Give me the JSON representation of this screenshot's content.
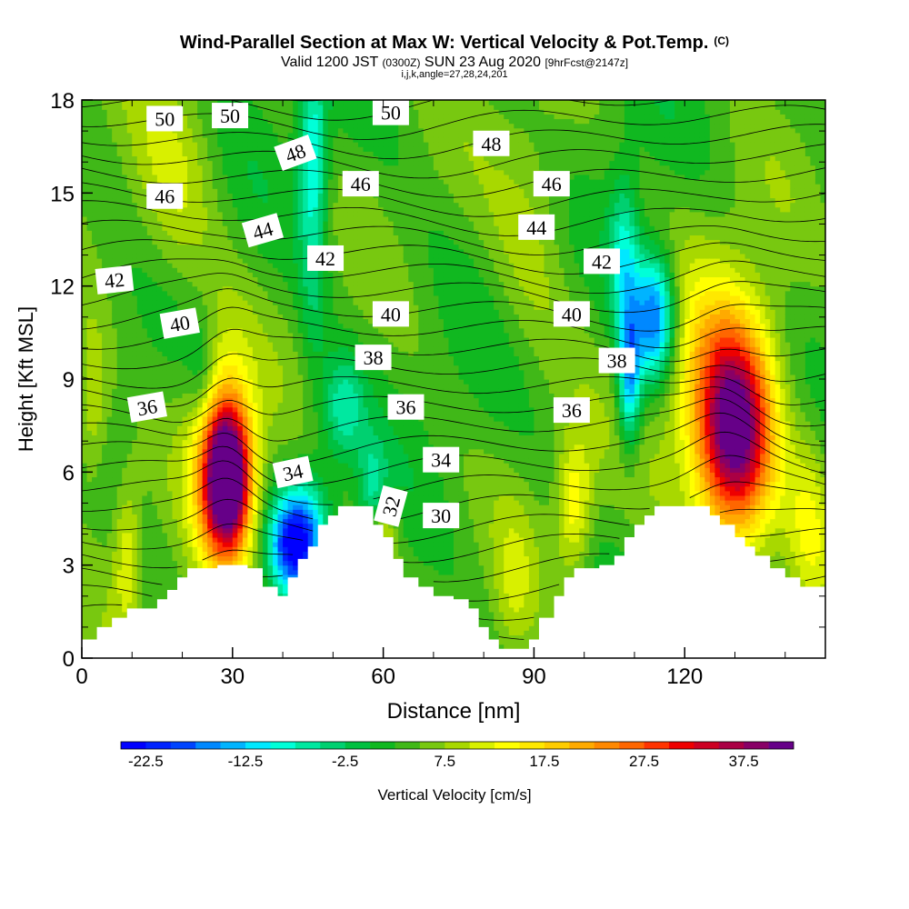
{
  "chart_data": {
    "type": "heatmap",
    "title": "Wind-Parallel Section at Max W: Vertical Velocity & Pot.Temp.",
    "title_suffix": "(C)",
    "subtitle": {
      "main_a": "Valid 1200 JST",
      "small_a": "(0300Z)",
      "main_b": "SUN 23 Aug 2020",
      "small_b": "[9hrFcst@2147z]"
    },
    "index_line": "i,j,k,angle=27,28,24,201",
    "xlabel": "Distance [nm]",
    "ylabel": "Height [Kft MSL]",
    "xlim": [
      0,
      148
    ],
    "ylim": [
      0,
      18
    ],
    "x_ticks": [
      0,
      30,
      60,
      90,
      120
    ],
    "y_ticks": [
      0,
      3,
      6,
      9,
      12,
      15,
      18
    ],
    "colorbar": {
      "label": "Vertical Velocity [cm/s]",
      "min": -25,
      "max": 42.5,
      "step": 2.5,
      "tick_labels": [
        "-22.5",
        "-12.5",
        "-2.5",
        "7.5",
        "17.5",
        "27.5",
        "37.5"
      ],
      "colors": [
        "#0000ff",
        "#0022ff",
        "#0044ff",
        "#0088ff",
        "#00b4ff",
        "#00e8ff",
        "#00ffd8",
        "#00e8a0",
        "#00d070",
        "#00c040",
        "#10b820",
        "#40b818",
        "#78c810",
        "#a8d800",
        "#d8f000",
        "#ffff00",
        "#ffe800",
        "#ffcc00",
        "#ffaa00",
        "#ff8800",
        "#ff6600",
        "#ff3300",
        "#ee0000",
        "#cc0022",
        "#aa0044",
        "#880066",
        "#660088"
      ]
    },
    "isentropes_pot_temp_C": {
      "levels_labeled": [
        30,
        32,
        34,
        36,
        38,
        40,
        42,
        44,
        46,
        48,
        50
      ],
      "labels": [
        {
          "text": "50",
          "x": 16.5,
          "y": 17.4,
          "rot": 0
        },
        {
          "text": "50",
          "x": 29.5,
          "y": 17.5,
          "rot": 0
        },
        {
          "text": "50",
          "x": 61.5,
          "y": 17.6,
          "rot": 0
        },
        {
          "text": "48",
          "x": 42.5,
          "y": 16.3,
          "rot": -20
        },
        {
          "text": "48",
          "x": 81.5,
          "y": 16.6,
          "rot": 0
        },
        {
          "text": "46",
          "x": 16.5,
          "y": 14.9,
          "rot": 0
        },
        {
          "text": "46",
          "x": 55.5,
          "y": 15.3,
          "rot": 0
        },
        {
          "text": "46",
          "x": 93.5,
          "y": 15.3,
          "rot": 0
        },
        {
          "text": "44",
          "x": 36.0,
          "y": 13.8,
          "rot": -16
        },
        {
          "text": "44",
          "x": 90.5,
          "y": 13.9,
          "rot": 0
        },
        {
          "text": "42",
          "x": 6.5,
          "y": 12.2,
          "rot": -6
        },
        {
          "text": "42",
          "x": 48.5,
          "y": 12.9,
          "rot": 0
        },
        {
          "text": "42",
          "x": 103.5,
          "y": 12.8,
          "rot": 0
        },
        {
          "text": "40",
          "x": 19.5,
          "y": 10.8,
          "rot": -10
        },
        {
          "text": "40",
          "x": 61.5,
          "y": 11.1,
          "rot": 0
        },
        {
          "text": "40",
          "x": 97.5,
          "y": 11.1,
          "rot": 0
        },
        {
          "text": "38",
          "x": 58.0,
          "y": 9.7,
          "rot": 0
        },
        {
          "text": "38",
          "x": 106.5,
          "y": 9.6,
          "rot": 0
        },
        {
          "text": "36",
          "x": 13.0,
          "y": 8.1,
          "rot": -10
        },
        {
          "text": "36",
          "x": 64.5,
          "y": 8.1,
          "rot": 0
        },
        {
          "text": "36",
          "x": 97.5,
          "y": 8.0,
          "rot": 0
        },
        {
          "text": "34",
          "x": 42.0,
          "y": 6.0,
          "rot": -12
        },
        {
          "text": "34",
          "x": 71.5,
          "y": 6.4,
          "rot": 0
        },
        {
          "text": "32",
          "x": 61.5,
          "y": 4.9,
          "rot": -75
        },
        {
          "text": "30",
          "x": 71.5,
          "y": 4.6,
          "rot": 0
        }
      ]
    },
    "terrain_top_kft": [
      {
        "x": 0,
        "h": 0.6
      },
      {
        "x": 3,
        "h": 1.0
      },
      {
        "x": 6,
        "h": 1.3
      },
      {
        "x": 9,
        "h": 1.6
      },
      {
        "x": 12,
        "h": 1.6
      },
      {
        "x": 15,
        "h": 1.9
      },
      {
        "x": 17,
        "h": 2.2
      },
      {
        "x": 19,
        "h": 2.6
      },
      {
        "x": 21,
        "h": 2.9
      },
      {
        "x": 24,
        "h": 2.9
      },
      {
        "x": 27,
        "h": 3.0
      },
      {
        "x": 30,
        "h": 3.0
      },
      {
        "x": 33,
        "h": 2.9
      },
      {
        "x": 36,
        "h": 2.3
      },
      {
        "x": 39,
        "h": 2.0
      },
      {
        "x": 41,
        "h": 2.6
      },
      {
        "x": 43,
        "h": 3.2
      },
      {
        "x": 45,
        "h": 3.6
      },
      {
        "x": 47,
        "h": 4.3
      },
      {
        "x": 49,
        "h": 4.6
      },
      {
        "x": 51,
        "h": 4.9
      },
      {
        "x": 55,
        "h": 4.9
      },
      {
        "x": 58,
        "h": 4.3
      },
      {
        "x": 60,
        "h": 3.9
      },
      {
        "x": 62,
        "h": 3.2
      },
      {
        "x": 64,
        "h": 2.6
      },
      {
        "x": 67,
        "h": 2.3
      },
      {
        "x": 70,
        "h": 2.0
      },
      {
        "x": 74,
        "h": 1.9
      },
      {
        "x": 77,
        "h": 1.6
      },
      {
        "x": 79,
        "h": 1.0
      },
      {
        "x": 81,
        "h": 0.6
      },
      {
        "x": 83,
        "h": 0.3
      },
      {
        "x": 86,
        "h": 0.3
      },
      {
        "x": 89,
        "h": 0.6
      },
      {
        "x": 91,
        "h": 1.3
      },
      {
        "x": 94,
        "h": 2.0
      },
      {
        "x": 96,
        "h": 2.6
      },
      {
        "x": 98,
        "h": 2.9
      },
      {
        "x": 103,
        "h": 3.0
      },
      {
        "x": 106,
        "h": 3.3
      },
      {
        "x": 108,
        "h": 3.9
      },
      {
        "x": 110,
        "h": 4.3
      },
      {
        "x": 112,
        "h": 4.6
      },
      {
        "x": 114,
        "h": 4.9
      },
      {
        "x": 123,
        "h": 4.9
      },
      {
        "x": 125,
        "h": 4.6
      },
      {
        "x": 127,
        "h": 4.3
      },
      {
        "x": 130,
        "h": 3.9
      },
      {
        "x": 132,
        "h": 3.6
      },
      {
        "x": 134,
        "h": 3.3
      },
      {
        "x": 137,
        "h": 2.9
      },
      {
        "x": 140,
        "h": 2.6
      },
      {
        "x": 143,
        "h": 2.3
      },
      {
        "x": 146,
        "h": 2.3
      },
      {
        "x": 148,
        "h": 2.3
      }
    ],
    "vertical_velocity_features_cm_s": [
      {
        "x": 29,
        "z": 5.8,
        "w": 40,
        "sx": 3.2,
        "sz": 1.6
      },
      {
        "x": 28,
        "z": 6.6,
        "w": 15,
        "sx": 4.5,
        "sz": 2.8
      },
      {
        "x": 130,
        "z": 7.2,
        "w": 32,
        "sx": 5.0,
        "sz": 2.3
      },
      {
        "x": 127,
        "z": 8.3,
        "w": 12,
        "sx": 9.0,
        "sz": 3.2
      },
      {
        "x": 114,
        "z": 11.0,
        "w": -24,
        "sx": 3.0,
        "sz": 1.5
      },
      {
        "x": 109,
        "z": 9.0,
        "w": -18,
        "sx": 1.6,
        "sz": 1.6
      },
      {
        "x": 108,
        "z": 13.0,
        "w": -12,
        "sx": 2.2,
        "sz": 1.8
      },
      {
        "x": 44,
        "z": 4.0,
        "w": -18,
        "sx": 3.5,
        "sz": 1.3
      },
      {
        "x": 41,
        "z": 3.6,
        "w": -13,
        "sx": 3.0,
        "sz": 1.0
      },
      {
        "x": 52,
        "z": 8.0,
        "w": -10,
        "sx": 3.0,
        "sz": 1.2
      },
      {
        "x": 46,
        "z": 16.5,
        "w": -11,
        "sx": 2.0,
        "sz": 2.0
      },
      {
        "x": 46,
        "z": 13.0,
        "w": -6,
        "sx": 2.0,
        "sz": 3.0
      },
      {
        "x": 58,
        "z": 5.5,
        "w": -9,
        "sx": 2.0,
        "sz": 1.0
      },
      {
        "x": 24,
        "z": 9.2,
        "w": -6,
        "sx": 2.0,
        "sz": 1.2
      },
      {
        "x": 2,
        "z": 8.0,
        "w": 8,
        "sx": 2.5,
        "sz": 2.0
      },
      {
        "x": 9,
        "z": 3.5,
        "w": 8,
        "sx": 2.0,
        "sz": 1.8
      },
      {
        "x": 98,
        "z": 5.0,
        "w": 11,
        "sx": 2.5,
        "sz": 1.5
      },
      {
        "x": 145,
        "z": 4.5,
        "w": 7,
        "sx": 3.0,
        "sz": 2.0
      },
      {
        "x": 86,
        "z": 2.0,
        "w": 5,
        "sx": 3.0,
        "sz": 2.0
      },
      {
        "x": 60,
        "z": 3.8,
        "w": 8,
        "sx": 2.0,
        "sz": 1.0
      },
      {
        "x": 18,
        "z": 15.0,
        "w": 6,
        "sx": 6.0,
        "sz": 2.5
      },
      {
        "x": 90,
        "z": 14.0,
        "w": 5,
        "sx": 6.0,
        "sz": 3.0
      }
    ]
  }
}
